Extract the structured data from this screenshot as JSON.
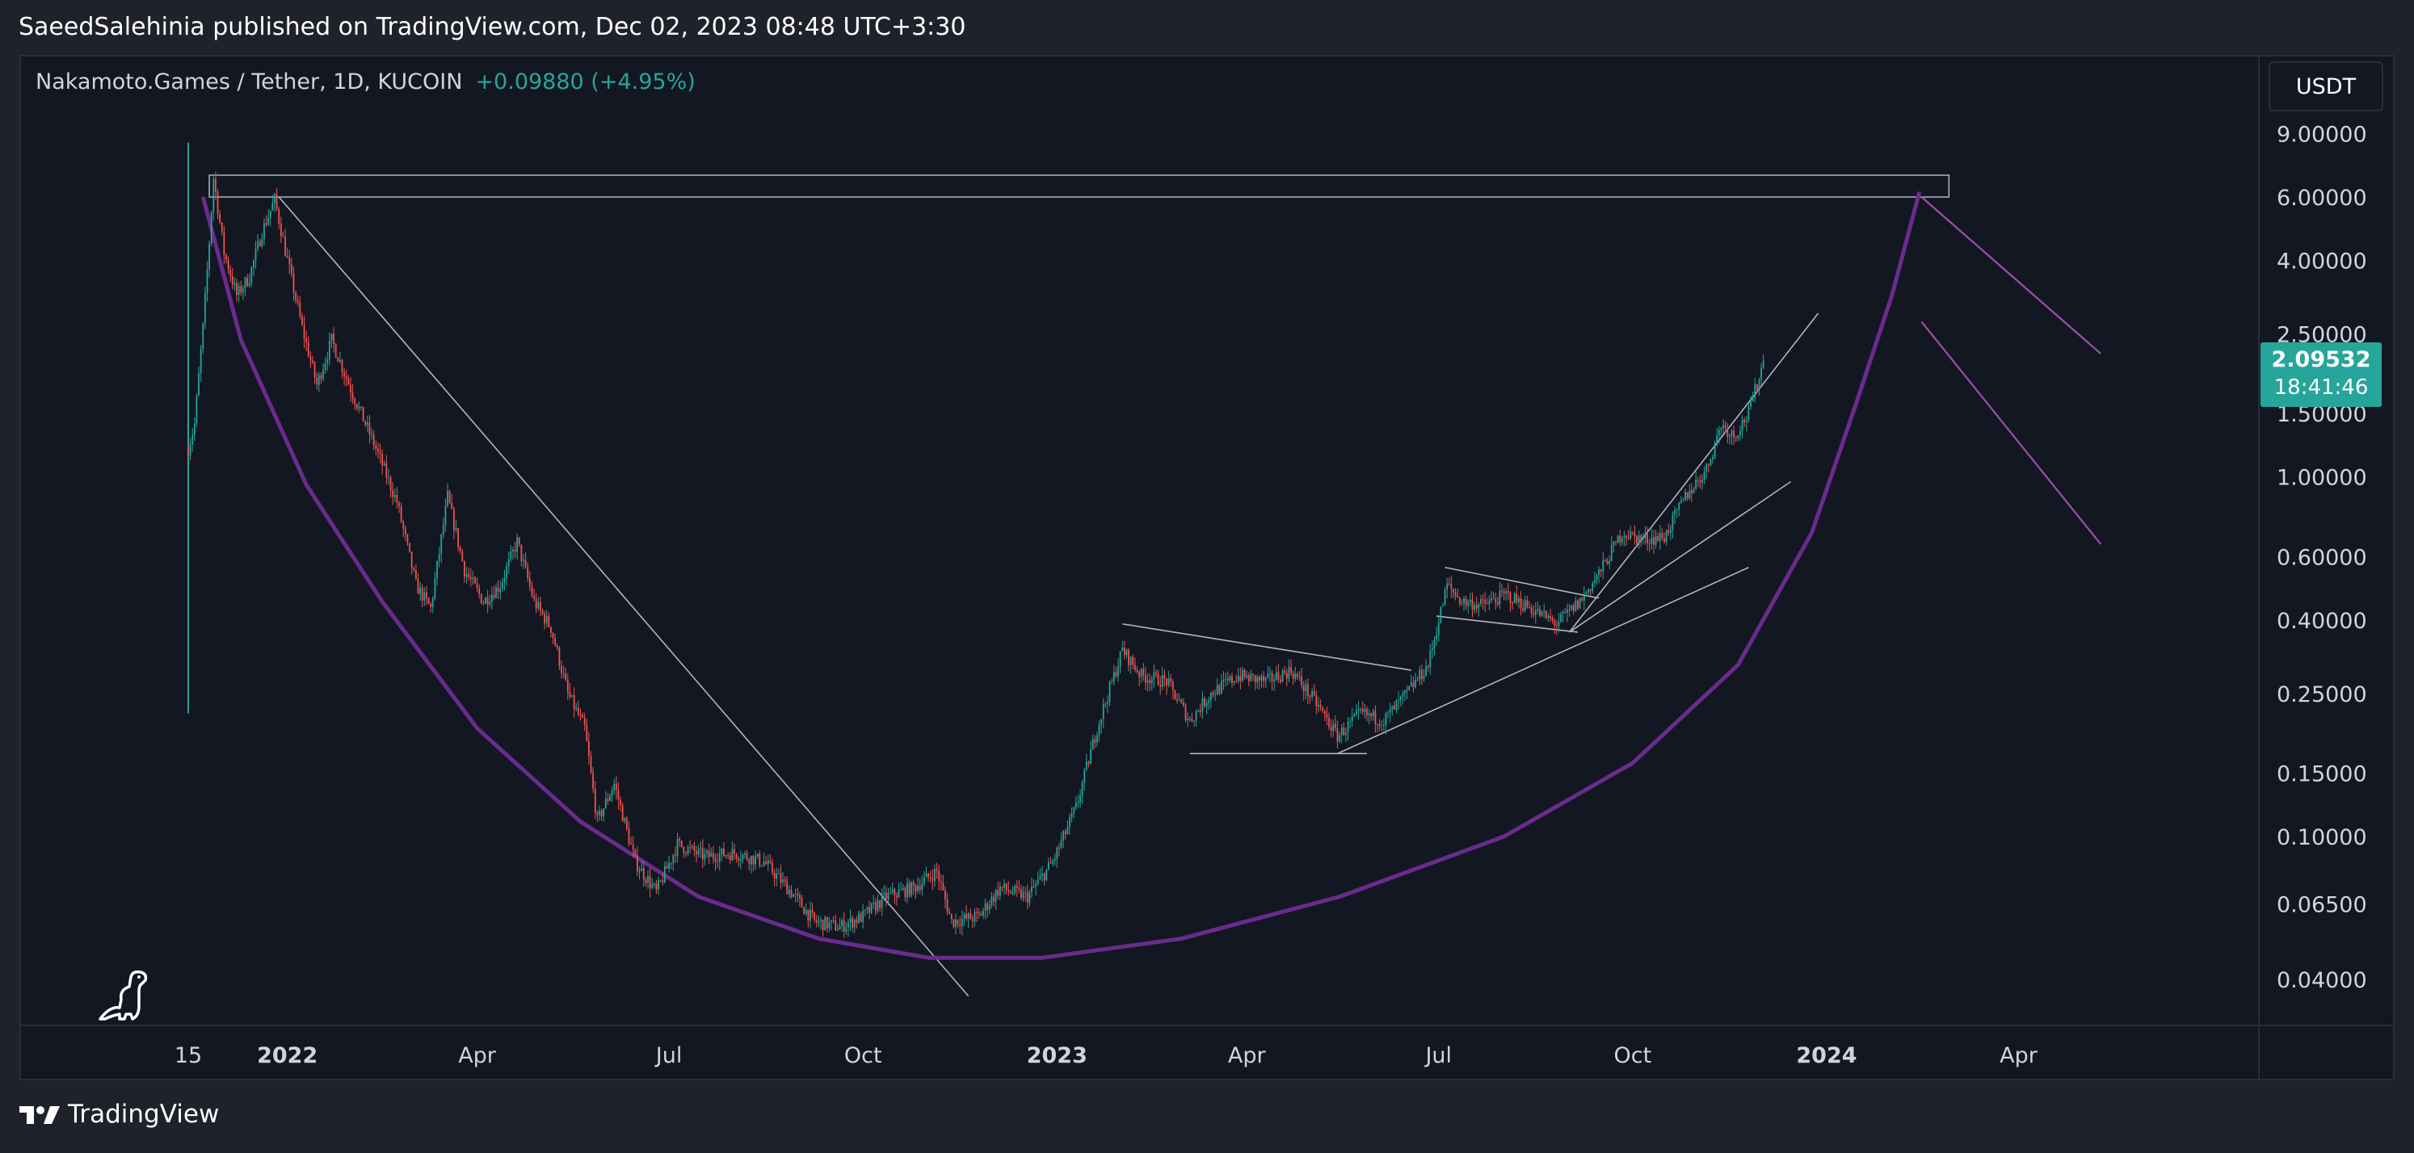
{
  "header": {
    "published_line": "SaeedSalehinia published on TradingView.com, Dec 02, 2023 08:48 UTC+3:30"
  },
  "symbol": {
    "name": "Nakamoto.Games / Tether, 1D, KUCOIN",
    "change": "+0.09880 (+4.95%)"
  },
  "currency": "USDT",
  "price_label": {
    "price": "2.09532",
    "countdown": "18:41:46"
  },
  "brand": "TradingView",
  "icons": {
    "logo_watermark": "dinosaur-icon",
    "brand_logo": "tradingview-logo-icon"
  },
  "colors": {
    "background": "#131722",
    "up": "#26a69a",
    "down": "#ef5350",
    "cup_arc": "#6a2c8c",
    "target_lines": "#9c4fa8",
    "trendlines": "#b2b5be"
  },
  "chart_data": {
    "type": "candlestick",
    "scale": "log",
    "interval": "1D",
    "exchange": "KUCOIN",
    "x_tick_labels": [
      "15",
      "2022",
      "Apr",
      "Jul",
      "Oct",
      "2023",
      "Apr",
      "Jul",
      "Oct",
      "2024",
      "Apr"
    ],
    "x_ticks": [
      "2021-11-15",
      "2022-01-01",
      "2022-04-01",
      "2022-07-01",
      "2022-10-01",
      "2023-01-01",
      "2023-04-01",
      "2023-07-01",
      "2023-10-01",
      "2024-01-01",
      "2024-04-01"
    ],
    "y_tick_labels": [
      "9.00000",
      "6.00000",
      "4.00000",
      "2.50000",
      "1.50000",
      "1.00000",
      "0.60000",
      "0.40000",
      "0.25000",
      "0.15000",
      "0.10000",
      "0.06500",
      "0.04000"
    ],
    "y_ticks": [
      9,
      6,
      4,
      2.5,
      1.5,
      1,
      0.6,
      0.4,
      0.25,
      0.15,
      0.1,
      0.065,
      0.04
    ],
    "last_price": 2.09532,
    "price_path": [
      [
        "2021-11-15",
        1.2
      ],
      [
        "2021-11-18",
        1.4
      ],
      [
        "2021-11-22",
        2.6
      ],
      [
        "2021-11-25",
        4.5
      ],
      [
        "2021-11-27",
        6.8
      ],
      [
        "2021-12-02",
        4.2
      ],
      [
        "2021-12-08",
        3.2
      ],
      [
        "2021-12-14",
        3.6
      ],
      [
        "2021-12-20",
        4.8
      ],
      [
        "2021-12-26",
        5.9
      ],
      [
        "2022-01-01",
        4.0
      ],
      [
        "2022-01-08",
        2.6
      ],
      [
        "2022-01-15",
        1.8
      ],
      [
        "2022-01-22",
        2.4
      ],
      [
        "2022-02-01",
        1.7
      ],
      [
        "2022-02-12",
        1.2
      ],
      [
        "2022-02-22",
        0.85
      ],
      [
        "2022-03-03",
        0.5
      ],
      [
        "2022-03-10",
        0.43
      ],
      [
        "2022-03-18",
        0.88
      ],
      [
        "2022-03-26",
        0.55
      ],
      [
        "2022-04-04",
        0.45
      ],
      [
        "2022-04-12",
        0.5
      ],
      [
        "2022-04-20",
        0.66
      ],
      [
        "2022-04-28",
        0.45
      ],
      [
        "2022-05-06",
        0.38
      ],
      [
        "2022-05-14",
        0.25
      ],
      [
        "2022-05-22",
        0.2
      ],
      [
        "2022-05-28",
        0.11
      ],
      [
        "2022-06-05",
        0.14
      ],
      [
        "2022-06-15",
        0.085
      ],
      [
        "2022-06-25",
        0.07
      ],
      [
        "2022-07-05",
        0.095
      ],
      [
        "2022-07-18",
        0.088
      ],
      [
        "2022-08-01",
        0.09
      ],
      [
        "2022-08-15",
        0.085
      ],
      [
        "2022-08-28",
        0.07
      ],
      [
        "2022-09-08",
        0.058
      ],
      [
        "2022-09-20",
        0.056
      ],
      [
        "2022-10-01",
        0.06
      ],
      [
        "2022-10-12",
        0.068
      ],
      [
        "2022-10-25",
        0.072
      ],
      [
        "2022-11-05",
        0.08
      ],
      [
        "2022-11-12",
        0.058
      ],
      [
        "2022-11-25",
        0.06
      ],
      [
        "2022-12-05",
        0.072
      ],
      [
        "2022-12-18",
        0.068
      ],
      [
        "2022-12-30",
        0.085
      ],
      [
        "2023-01-10",
        0.12
      ],
      [
        "2023-01-20",
        0.2
      ],
      [
        "2023-02-01",
        0.33
      ],
      [
        "2023-02-10",
        0.28
      ],
      [
        "2023-02-22",
        0.27
      ],
      [
        "2023-03-05",
        0.21
      ],
      [
        "2023-03-15",
        0.25
      ],
      [
        "2023-03-28",
        0.28
      ],
      [
        "2023-04-10",
        0.27
      ],
      [
        "2023-04-22",
        0.29
      ],
      [
        "2023-05-05",
        0.23
      ],
      [
        "2023-05-14",
        0.19
      ],
      [
        "2023-05-25",
        0.22
      ],
      [
        "2023-06-05",
        0.21
      ],
      [
        "2023-06-16",
        0.25
      ],
      [
        "2023-06-26",
        0.3
      ],
      [
        "2023-07-05",
        0.5
      ],
      [
        "2023-07-12",
        0.45
      ],
      [
        "2023-07-22",
        0.44
      ],
      [
        "2023-08-02",
        0.47
      ],
      [
        "2023-08-14",
        0.43
      ],
      [
        "2023-08-26",
        0.39
      ],
      [
        "2023-09-06",
        0.45
      ],
      [
        "2023-09-16",
        0.55
      ],
      [
        "2023-09-26",
        0.7
      ],
      [
        "2023-10-06",
        0.67
      ],
      [
        "2023-10-16",
        0.68
      ],
      [
        "2023-10-26",
        0.88
      ],
      [
        "2023-11-05",
        1.05
      ],
      [
        "2023-11-12",
        1.4
      ],
      [
        "2023-11-18",
        1.3
      ],
      [
        "2023-11-25",
        1.5
      ],
      [
        "2023-12-01",
        2.0
      ],
      [
        "2023-12-02",
        2.09532
      ]
    ]
  }
}
